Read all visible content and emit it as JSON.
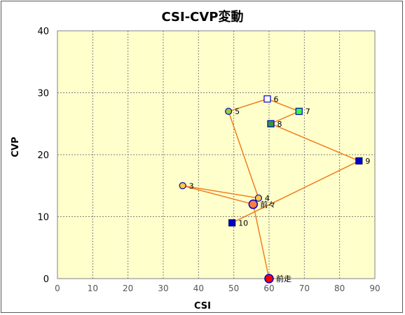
{
  "chart_data": {
    "type": "scatter",
    "title": "CSI-CVP変動",
    "xlabel": "CSI",
    "ylabel": "CVP",
    "xlim": [
      0,
      90
    ],
    "ylim": [
      0,
      40
    ],
    "xticks": [
      "0",
      "10",
      "20",
      "30",
      "40",
      "50",
      "60",
      "70",
      "80",
      "90"
    ],
    "yticks": [
      "0",
      "10",
      "20",
      "30",
      "40"
    ],
    "grid": true,
    "plot_background": "#ffffcc",
    "line_color": "#f07f1e",
    "points": [
      {
        "label": "前走",
        "x": 60,
        "y": 0,
        "marker": "circle",
        "fill": "#ff0000",
        "stroke": "#0000cc",
        "size": "large"
      },
      {
        "label": "前々",
        "x": 55.5,
        "y": 12,
        "marker": "circle",
        "fill": "#ff7f3f",
        "stroke": "#0000cc",
        "size": "large"
      },
      {
        "label": "3",
        "x": 35.5,
        "y": 15,
        "marker": "circle",
        "fill": "#ffcc33",
        "stroke": "#0000cc",
        "size": "small"
      },
      {
        "label": "4",
        "x": 57,
        "y": 13,
        "marker": "circle",
        "fill": "#ffcc33",
        "stroke": "#0000cc",
        "size": "small"
      },
      {
        "label": "5",
        "x": 48.5,
        "y": 27,
        "marker": "circle",
        "fill": "#99cc33",
        "stroke": "#0000cc",
        "size": "small"
      },
      {
        "label": "6",
        "x": 59.5,
        "y": 29,
        "marker": "square",
        "fill": "#ffffff",
        "stroke": "#0000cc",
        "size": "small"
      },
      {
        "label": "7",
        "x": 68.5,
        "y": 27,
        "marker": "square",
        "fill": "#33ff33",
        "stroke": "#0000cc",
        "size": "small"
      },
      {
        "label": "8",
        "x": 60.5,
        "y": 25,
        "marker": "square",
        "fill": "#339933",
        "stroke": "#0000cc",
        "size": "small"
      },
      {
        "label": "9",
        "x": 85.5,
        "y": 19,
        "marker": "square",
        "fill": "#0000cc",
        "stroke": "#000066",
        "size": "small"
      },
      {
        "label": "10",
        "x": 49.5,
        "y": 9,
        "marker": "square",
        "fill": "#0000cc",
        "stroke": "#000066",
        "size": "small"
      }
    ]
  }
}
